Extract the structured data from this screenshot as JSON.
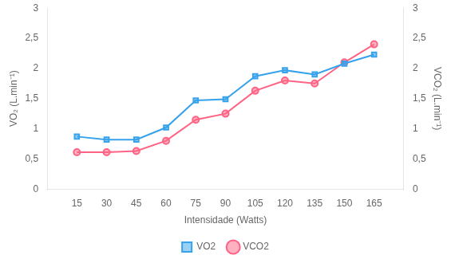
{
  "chart_data": {
    "type": "line",
    "xlabel": "Intensidade (Watts)",
    "ylabel": "VO₂ (L.min⁻¹)",
    "y2label": "VCO₂ (L.min⁻¹)",
    "x": [
      15,
      30,
      45,
      60,
      75,
      90,
      105,
      120,
      135,
      150,
      165
    ],
    "series": [
      {
        "name": "VO2",
        "marker": "square",
        "values": [
          0.87,
          0.82,
          0.82,
          1.02,
          1.47,
          1.49,
          1.87,
          1.97,
          1.9,
          2.08,
          2.23
        ]
      },
      {
        "name": "VCO2",
        "marker": "circle",
        "axis": "y2",
        "values": [
          0.61,
          0.61,
          0.63,
          0.8,
          1.15,
          1.25,
          1.63,
          1.8,
          1.75,
          2.1,
          2.4
        ]
      }
    ],
    "xlim": [
      0,
      180
    ],
    "xticks": [
      15,
      30,
      45,
      60,
      75,
      90,
      105,
      120,
      135,
      150,
      165
    ],
    "ylim": [
      0,
      3
    ],
    "yticks": [
      0,
      {
        "value": 0.5,
        "label": "0,5"
      },
      1,
      {
        "value": 1.5,
        "label": "1,5"
      },
      2,
      {
        "value": 2.5,
        "label": "2,5"
      },
      3
    ],
    "y2lim": [
      0,
      3
    ],
    "y2ticks": [
      0,
      {
        "value": 0.5,
        "label": "0,5"
      },
      1,
      {
        "value": 1.5,
        "label": "1,5"
      },
      2,
      {
        "value": 2.5,
        "label": "2,5"
      },
      3
    ],
    "grid": false,
    "legend": "bottom"
  }
}
